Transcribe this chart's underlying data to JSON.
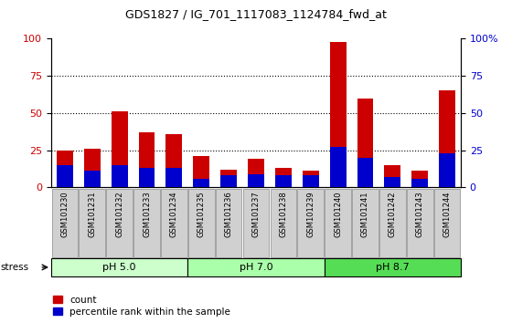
{
  "title": "GDS1827 / IG_701_1117083_1124784_fwd_at",
  "samples": [
    "GSM101230",
    "GSM101231",
    "GSM101232",
    "GSM101233",
    "GSM101234",
    "GSM101235",
    "GSM101236",
    "GSM101237",
    "GSM101238",
    "GSM101239",
    "GSM101240",
    "GSM101241",
    "GSM101242",
    "GSM101243",
    "GSM101244"
  ],
  "count_values": [
    25,
    26,
    51,
    37,
    36,
    21,
    12,
    19,
    13,
    11,
    98,
    60,
    15,
    11,
    65
  ],
  "percentile_values": [
    15,
    11,
    15,
    13,
    13,
    6,
    8,
    9,
    8,
    8,
    27,
    20,
    7,
    6,
    23
  ],
  "count_color": "#cc0000",
  "percentile_color": "#0000cc",
  "ylim": [
    0,
    100
  ],
  "yticks": [
    0,
    25,
    50,
    75,
    100
  ],
  "grid_values": [
    25,
    50,
    75
  ],
  "bar_width": 0.6,
  "groups": [
    {
      "label": "pH 5.0",
      "start": 0,
      "end": 5,
      "color": "#ccffcc"
    },
    {
      "label": "pH 7.0",
      "start": 5,
      "end": 10,
      "color": "#aaffaa"
    },
    {
      "label": "pH 8.7",
      "start": 10,
      "end": 15,
      "color": "#55dd55"
    }
  ],
  "stress_label": "stress",
  "legend_count": "count",
  "legend_percentile": "percentile rank within the sample",
  "left_tick_color": "#cc0000",
  "right_tick_color": "#0000cc",
  "tick_bg_color": "#d0d0d0",
  "tick_border_color": "#888888",
  "right_ylabels": [
    "0",
    "25",
    "50",
    "75",
    "100%"
  ],
  "left_ylabels": [
    "0",
    "25",
    "50",
    "75",
    "100"
  ]
}
